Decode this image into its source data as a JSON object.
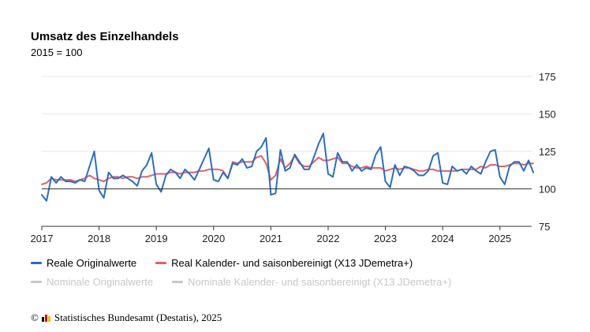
{
  "title": "Umsatz des Einzelhandels",
  "subtitle": "2015 = 100",
  "legend": [
    {
      "label": "Reale Originalwerte",
      "color": "#2a6ebf",
      "active": true
    },
    {
      "label": "Real Kalender- und saisonbereinigt (X13 JDemetra+)",
      "color": "#e06070",
      "active": true
    },
    {
      "label": "Nominale Originalwerte",
      "color": "#c8c8c8",
      "active": false
    },
    {
      "label": "Nominale Kalender- und saisonbereinigt (X13 JDemetra+)",
      "color": "#c8c8c8",
      "active": false
    }
  ],
  "source": {
    "copyright": "©",
    "text": "Statistisches Bundesamt (Destatis), 2025",
    "logo_colors": [
      "#000000",
      "#d4001a",
      "#f5b700"
    ]
  },
  "chart_data": {
    "type": "line",
    "ylim": [
      75,
      175
    ],
    "yticks": [
      "75",
      "100",
      "125",
      "150",
      "175"
    ],
    "baseline": 100,
    "x_start": "2017-01",
    "xticks": [
      "2017",
      "2018",
      "2019",
      "2020",
      "2021",
      "2022",
      "2023",
      "2024",
      "2025"
    ],
    "grid": true,
    "y_axis_side": "right",
    "series": [
      {
        "name": "Reale Originalwerte",
        "color": "#2a6ebf",
        "values": [
          96,
          92,
          108,
          104,
          108,
          105,
          105,
          104,
          106,
          105,
          115,
          125,
          99,
          94,
          111,
          107,
          107,
          109,
          107,
          105,
          102,
          112,
          116,
          124,
          103,
          98,
          109,
          113,
          111,
          107,
          113,
          110,
          106,
          113,
          120,
          127,
          106,
          105,
          111,
          107,
          117,
          116,
          120,
          114,
          115,
          125,
          128,
          134,
          96,
          97,
          126,
          112,
          114,
          123,
          118,
          113,
          113,
          121,
          130,
          137,
          110,
          108,
          124,
          118,
          118,
          112,
          116,
          112,
          114,
          113,
          123,
          128,
          105,
          101,
          116,
          109,
          115,
          114,
          112,
          109,
          109,
          112,
          122,
          124,
          104,
          103,
          115,
          112,
          113,
          110,
          115,
          112,
          110,
          118,
          125,
          126,
          108,
          103,
          115,
          118,
          118,
          112,
          119,
          111
        ]
      },
      {
        "name": "Real Kalender- und saisonbereinigt (X13 JDemetra+)",
        "color": "#e06070",
        "values": [
          103,
          104,
          107,
          106,
          106,
          106,
          106,
          105,
          106,
          107,
          109,
          107,
          106,
          105,
          107,
          108,
          108,
          107,
          108,
          108,
          107,
          108,
          108,
          109,
          110,
          110,
          110,
          111,
          111,
          110,
          111,
          111,
          111,
          112,
          112,
          113,
          113,
          113,
          112,
          107,
          118,
          117,
          118,
          118,
          118,
          121,
          122,
          117,
          106,
          109,
          120,
          114,
          117,
          122,
          117,
          115,
          115,
          118,
          121,
          119,
          119,
          120,
          121,
          117,
          117,
          115,
          114,
          114,
          115,
          114,
          114,
          114,
          112,
          113,
          114,
          113,
          114,
          114,
          113,
          112,
          112,
          113,
          113,
          112,
          112,
          112,
          112,
          112,
          113,
          113,
          113,
          113,
          115,
          114,
          116,
          116,
          115,
          115,
          116,
          117,
          117,
          116,
          117,
          117
        ]
      }
    ]
  }
}
